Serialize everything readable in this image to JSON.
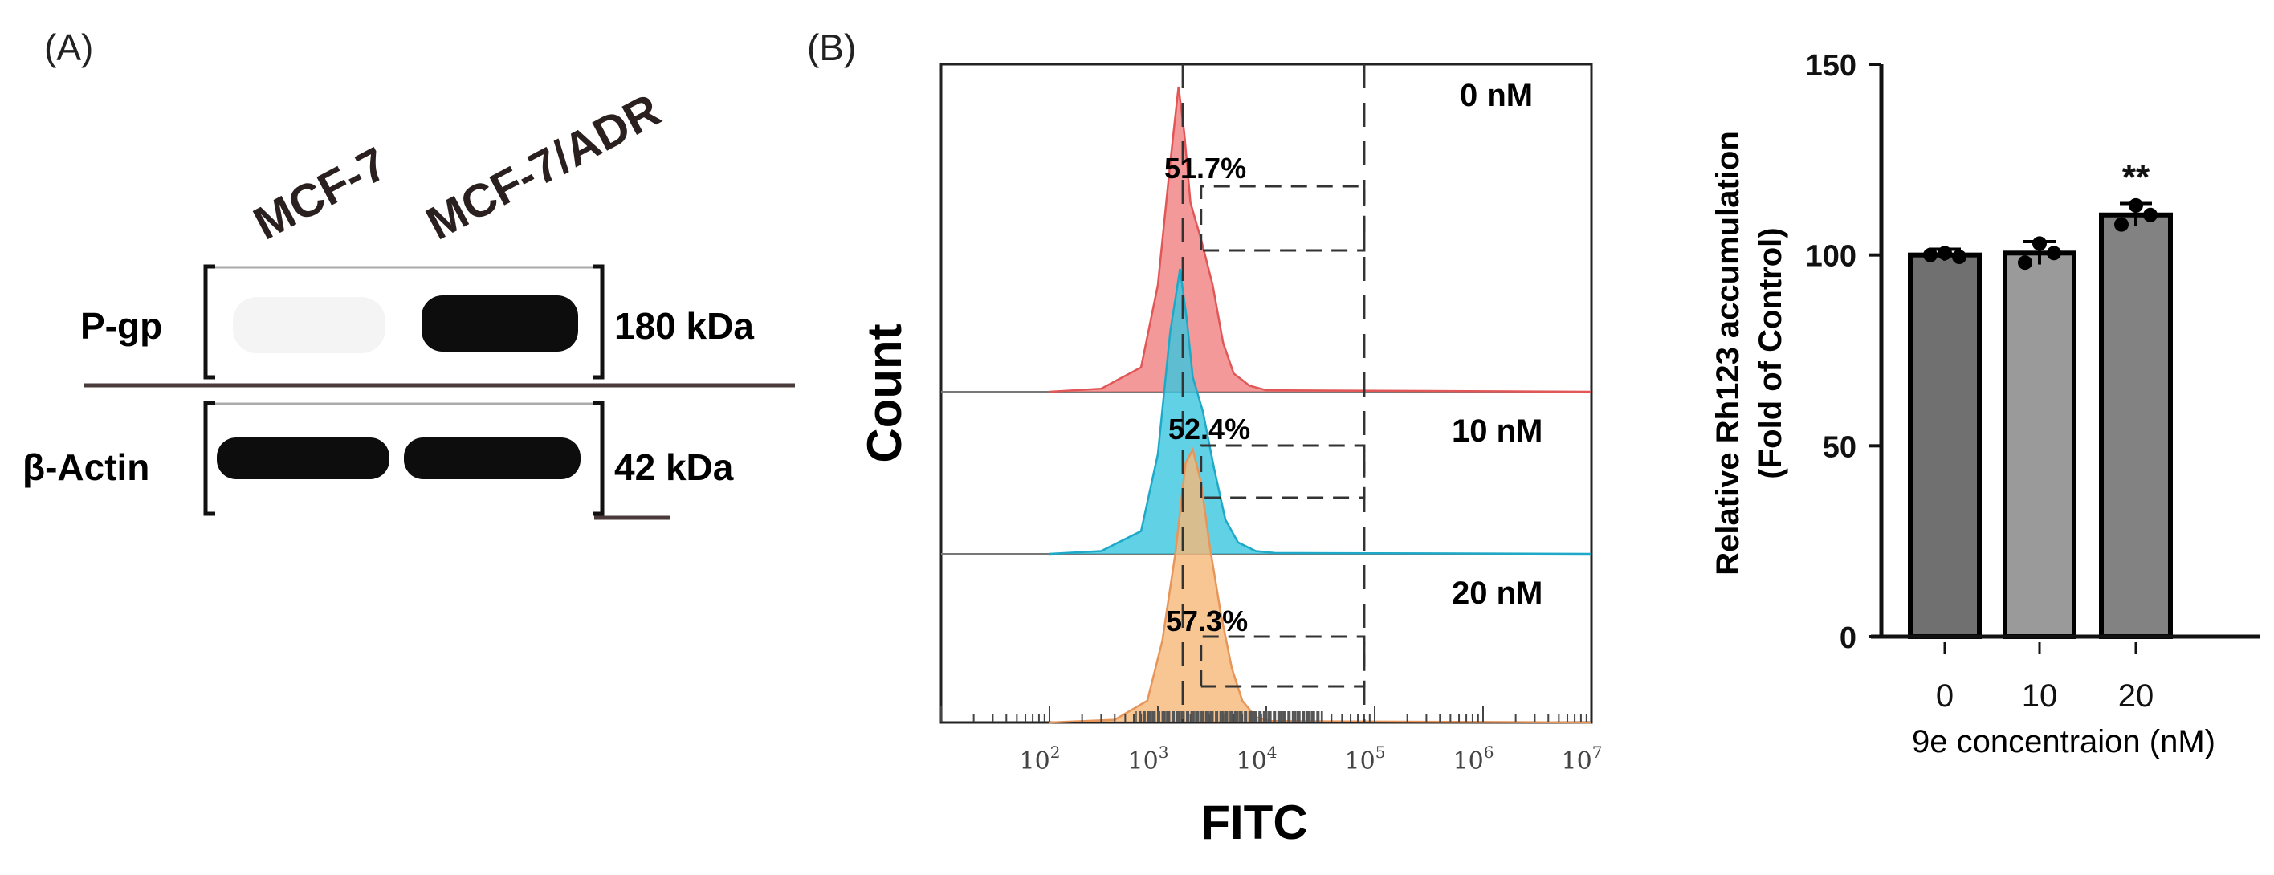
{
  "panel_a": {
    "label": "(A)",
    "lanes": [
      "MCF-7",
      "MCF-7/ADR"
    ],
    "rows": [
      {
        "protein": "P-gp",
        "size": "180 kDa",
        "band_intensity": [
          0.0,
          1.0
        ]
      },
      {
        "protein": "β-Actin",
        "size": "42 kDa",
        "band_intensity": [
          1.0,
          1.0
        ]
      }
    ]
  },
  "panel_b": {
    "label": "(B)"
  },
  "chart_data": [
    {
      "type": "area",
      "title": "",
      "xlabel": "FITC",
      "ylabel": "Count",
      "xscale": "log",
      "xlim": [
        10,
        10000000
      ],
      "xtick_labels": [
        {
          "base": "10",
          "exp": "2",
          "value": 100
        },
        {
          "base": "10",
          "exp": "3",
          "value": 1000
        },
        {
          "base": "10",
          "exp": "4",
          "value": 10000
        },
        {
          "base": "10",
          "exp": "5",
          "value": 100000
        },
        {
          "base": "10",
          "exp": "6",
          "value": 1000000
        },
        {
          "base": "10",
          "exp": "7",
          "value": 10000000
        }
      ],
      "reference_line": 1700,
      "gate": [
        2500,
        80000
      ],
      "series": [
        {
          "name": "0 nM",
          "color": "#f08080",
          "stroke": "#e15656",
          "gate_percent": "51.7%",
          "points": [
            [
              100,
              0
            ],
            [
              300,
              0.01
            ],
            [
              700,
              0.08
            ],
            [
              1000,
              0.35
            ],
            [
              1300,
              0.75
            ],
            [
              1550,
              1.0
            ],
            [
              1750,
              0.85
            ],
            [
              2000,
              0.62
            ],
            [
              2500,
              0.5
            ],
            [
              3200,
              0.35
            ],
            [
              4000,
              0.16
            ],
            [
              5000,
              0.06
            ],
            [
              7000,
              0.02
            ],
            [
              10000,
              0.005
            ],
            [
              10000000,
              0
            ]
          ]
        },
        {
          "name": "10 nM",
          "color": "#39c6e0",
          "stroke": "#1da9c7",
          "gate_percent": "52.4%",
          "points": [
            [
              100,
              0
            ],
            [
              300,
              0.01
            ],
            [
              700,
              0.08
            ],
            [
              1000,
              0.35
            ],
            [
              1300,
              0.78
            ],
            [
              1600,
              1.0
            ],
            [
              1850,
              0.82
            ],
            [
              2100,
              0.62
            ],
            [
              2600,
              0.5
            ],
            [
              3300,
              0.3
            ],
            [
              4200,
              0.12
            ],
            [
              5500,
              0.04
            ],
            [
              8000,
              0.01
            ],
            [
              12000,
              0.003
            ],
            [
              10000000,
              0
            ]
          ]
        },
        {
          "name": "20 nM",
          "color": "#f6b878",
          "stroke": "#e8955a",
          "gate_percent": "57.3%",
          "points": [
            [
              100,
              0
            ],
            [
              400,
              0.01
            ],
            [
              800,
              0.08
            ],
            [
              1100,
              0.3
            ],
            [
              1450,
              0.62
            ],
            [
              1800,
              0.95
            ],
            [
              2100,
              1.0
            ],
            [
              2500,
              0.88
            ],
            [
              3000,
              0.65
            ],
            [
              3800,
              0.4
            ],
            [
              4800,
              0.2
            ],
            [
              6000,
              0.08
            ],
            [
              8000,
              0.02
            ],
            [
              11000,
              0.005
            ],
            [
              10000000,
              0
            ]
          ]
        }
      ]
    },
    {
      "type": "bar",
      "title": "",
      "categories": [
        "0",
        "10",
        "20"
      ],
      "values": [
        100,
        100.5,
        110.5
      ],
      "errors": [
        1.5,
        3,
        3
      ],
      "points": [
        [
          100,
          100.5,
          99.5
        ],
        [
          98,
          103,
          100.5
        ],
        [
          108,
          113,
          110.5
        ]
      ],
      "bar_colors": [
        "#707070",
        "#9a9a9a",
        "#828282"
      ],
      "significance": [
        "",
        "",
        "**"
      ],
      "xlabel": "9e concentraion (nM)",
      "ylabel_line1": "Relative Rh123 accumulation",
      "ylabel_line2": "(Fold of Control)",
      "ylim": [
        0,
        150
      ],
      "yticks": [
        "0",
        "50",
        "100",
        "150"
      ]
    }
  ]
}
